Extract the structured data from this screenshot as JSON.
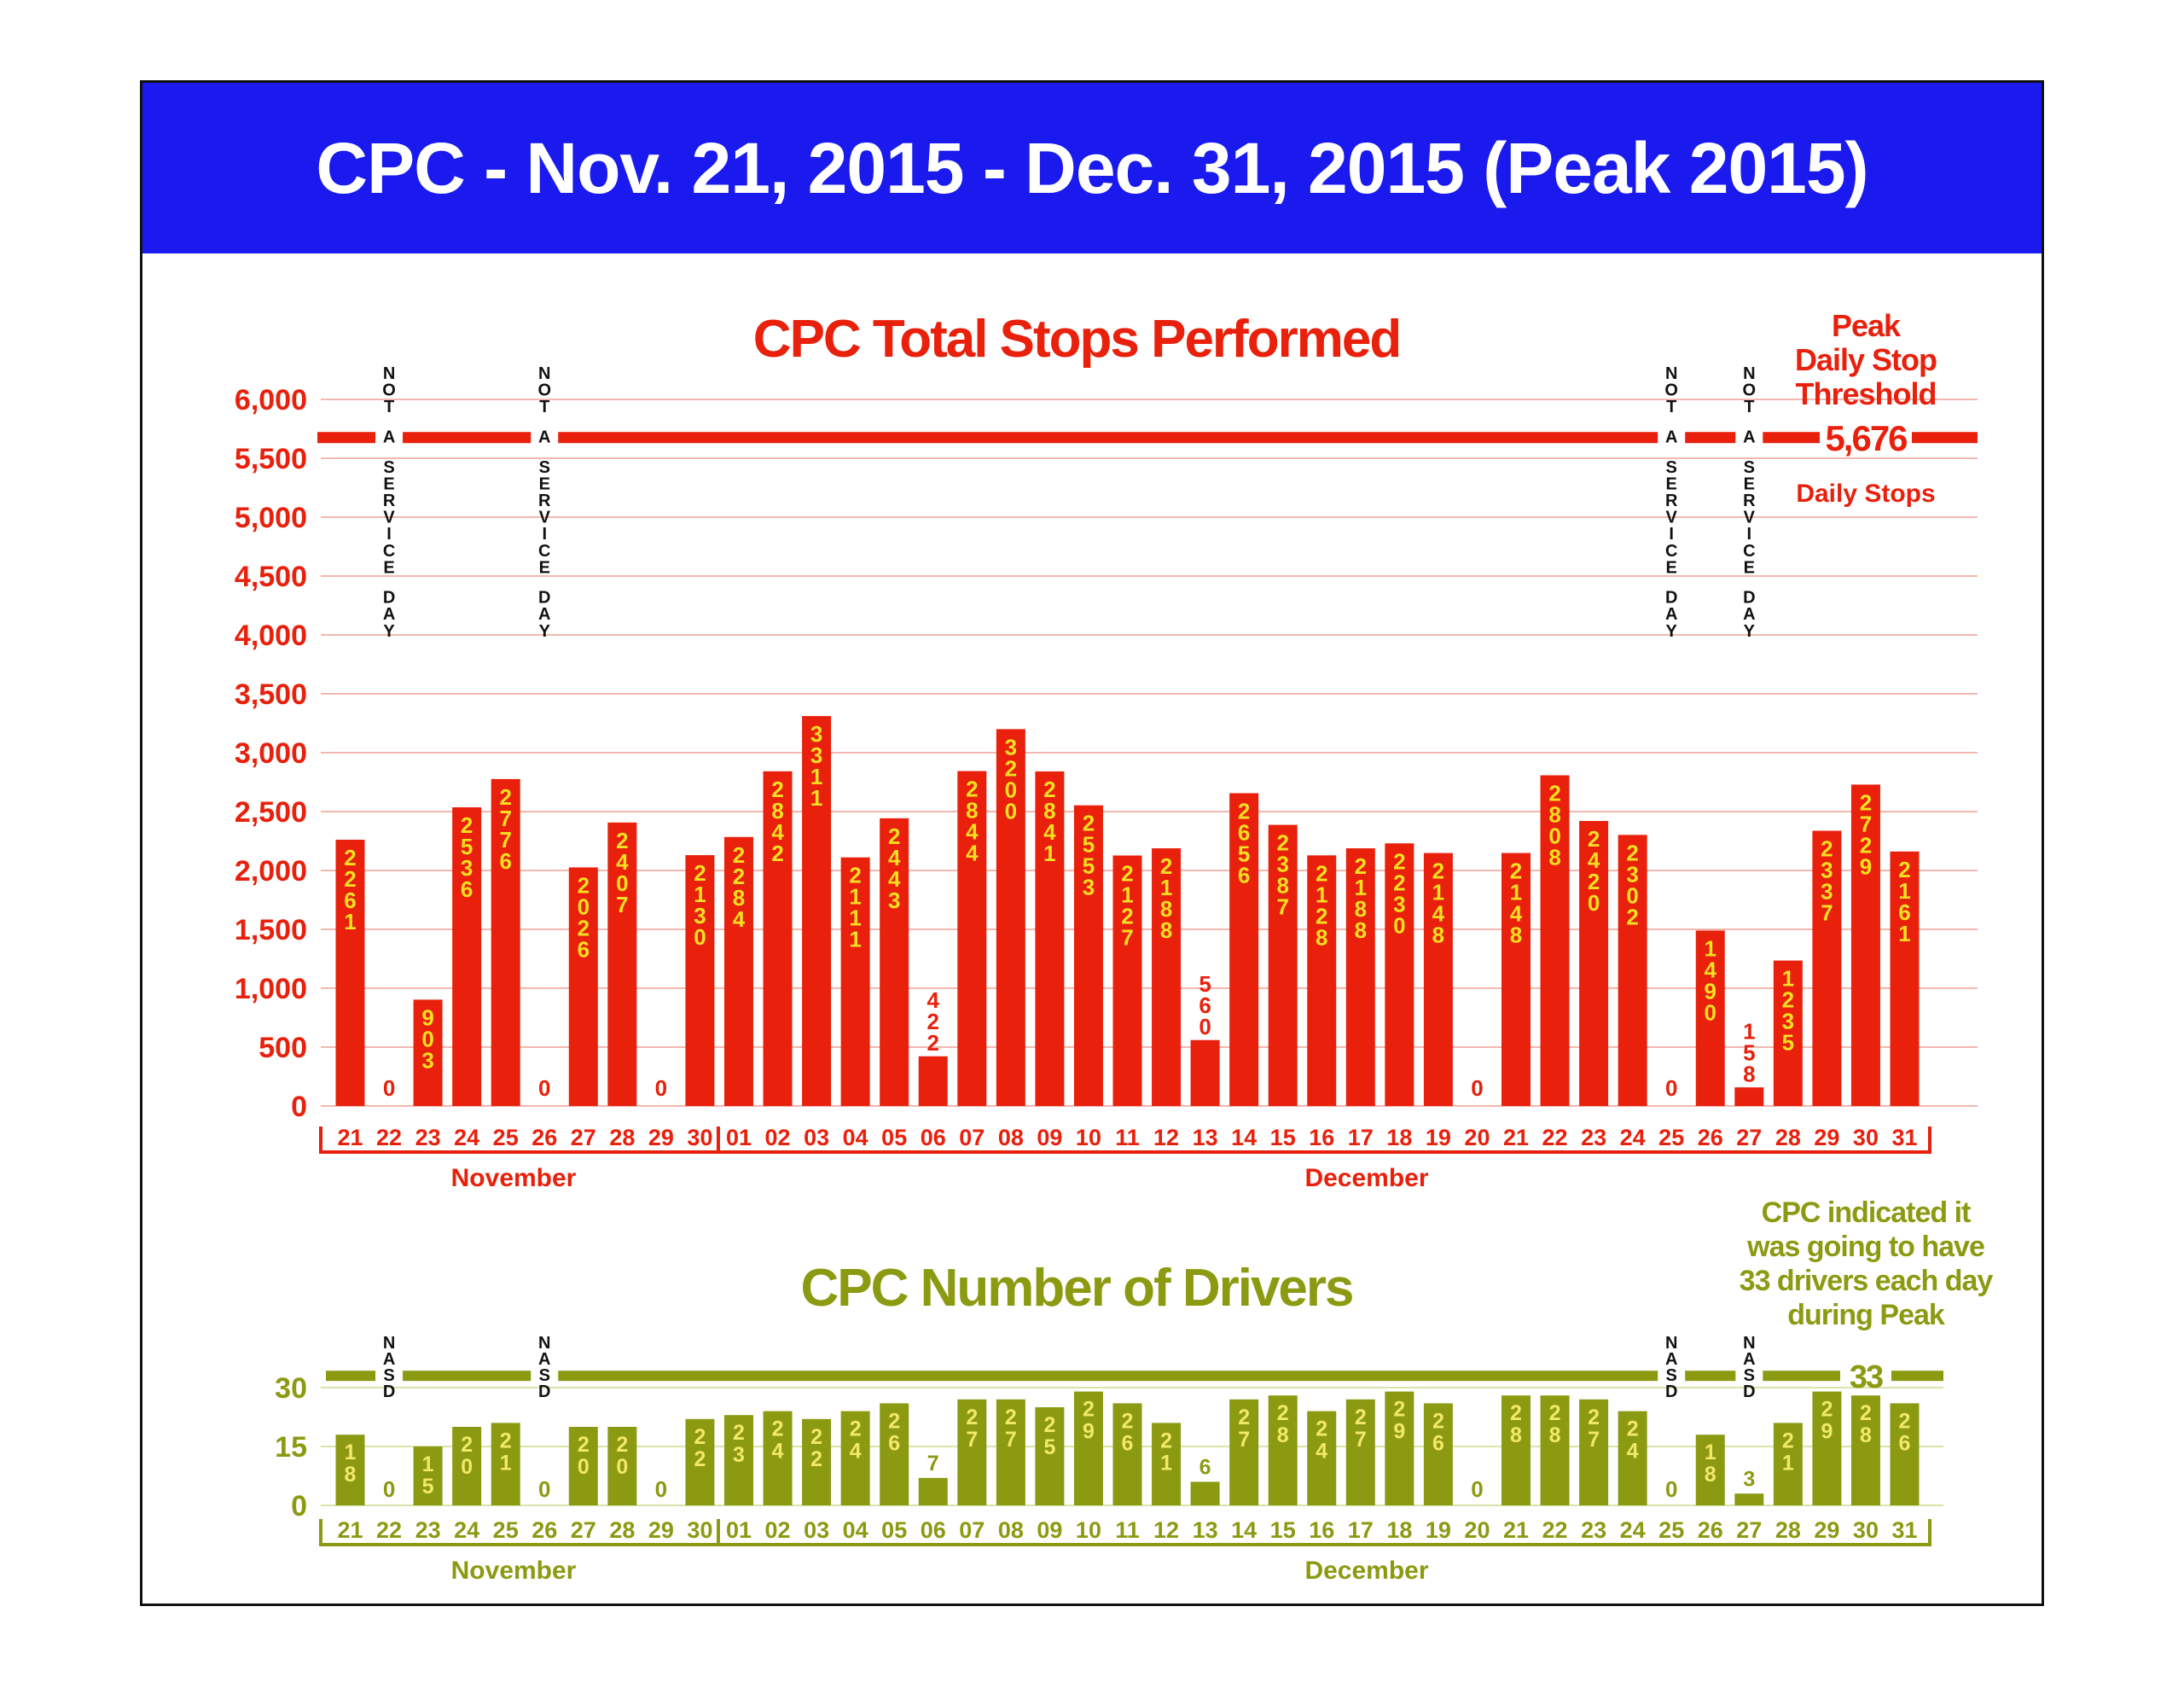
{
  "page": {
    "title": "CPC - Nov. 21, 2015 - Dec. 31, 2015 (Peak 2015)"
  },
  "colors": {
    "banner": "#1a1aee",
    "stops": "#e8200c",
    "stops_label": "#f5e020",
    "drivers": "#8c9a12",
    "drivers_label": "#f2e86a",
    "grid_red": "#f2b8b0",
    "grid_green": "#d9e4a8"
  },
  "chart_data": [
    {
      "type": "bar",
      "title": "CPC Total Stops Performed",
      "categories": [
        "21",
        "22",
        "23",
        "24",
        "25",
        "26",
        "27",
        "28",
        "29",
        "30",
        "01",
        "02",
        "03",
        "04",
        "05",
        "06",
        "07",
        "08",
        "09",
        "10",
        "11",
        "12",
        "13",
        "14",
        "15",
        "16",
        "17",
        "18",
        "19",
        "20",
        "21",
        "22",
        "23",
        "24",
        "25",
        "26",
        "27",
        "28",
        "29",
        "30",
        "31"
      ],
      "values": [
        2261,
        0,
        903,
        2536,
        2776,
        0,
        2026,
        2407,
        0,
        2130,
        2284,
        2842,
        3311,
        2111,
        2443,
        422,
        2844,
        3200,
        2841,
        2553,
        2127,
        2188,
        560,
        2656,
        2387,
        2128,
        2188,
        2230,
        2148,
        0,
        2148,
        2808,
        2420,
        2302,
        0,
        1490,
        158,
        1235,
        2337,
        2729,
        2161
      ],
      "ylim": [
        0,
        6000
      ],
      "yticks": [
        0,
        500,
        1000,
        1500,
        2000,
        2500,
        3000,
        3500,
        4000,
        4500,
        5000,
        5500,
        6000
      ],
      "ytick_labels": [
        "0",
        "500",
        "1,000",
        "1,500",
        "2,000",
        "2,500",
        "3,000",
        "3,500",
        "4,000",
        "4,500",
        "5,000",
        "5,500",
        "6,000"
      ],
      "months": [
        "November",
        "December"
      ],
      "threshold": {
        "value": 5676,
        "value_label": "5,676",
        "title_lines": [
          "Peak",
          "Daily Stop",
          "Threshold"
        ],
        "unit": "Daily Stops"
      },
      "not_service_days": [
        1,
        5,
        34,
        36
      ],
      "not_service_label": "NOT A SERVICE DAY"
    },
    {
      "type": "bar",
      "title": "CPC Number of Drivers",
      "categories": [
        "21",
        "22",
        "23",
        "24",
        "25",
        "26",
        "27",
        "28",
        "29",
        "30",
        "01",
        "02",
        "03",
        "04",
        "05",
        "06",
        "07",
        "08",
        "09",
        "10",
        "11",
        "12",
        "13",
        "14",
        "15",
        "16",
        "17",
        "18",
        "19",
        "20",
        "21",
        "22",
        "23",
        "24",
        "25",
        "26",
        "27",
        "28",
        "29",
        "30",
        "31"
      ],
      "values": [
        18,
        0,
        15,
        20,
        21,
        0,
        20,
        20,
        0,
        22,
        23,
        24,
        22,
        24,
        26,
        7,
        27,
        27,
        25,
        29,
        26,
        21,
        6,
        27,
        28,
        24,
        27,
        29,
        26,
        0,
        28,
        28,
        27,
        24,
        0,
        18,
        3,
        21,
        29,
        28,
        26
      ],
      "ylim": [
        0,
        30
      ],
      "yticks": [
        0,
        15,
        30
      ],
      "ytick_labels": [
        "0",
        "15",
        "30"
      ],
      "months": [
        "November",
        "December"
      ],
      "threshold": {
        "value": 33,
        "value_label": "33",
        "note_lines": [
          "CPC indicated it",
          "was going to have",
          "33 drivers each day",
          "during Peak"
        ]
      },
      "not_service_days": [
        1,
        5,
        34,
        36
      ],
      "not_service_label": "NASD"
    }
  ]
}
